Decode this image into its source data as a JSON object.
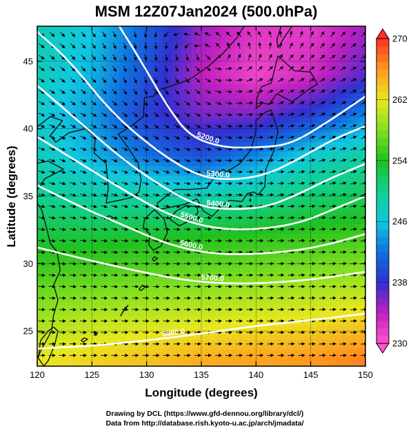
{
  "chart_data": {
    "type": "heatmap",
    "title": "MSM 12Z07Jan2024 (500.0hPa)",
    "xlabel": "Longitude (degrees)",
    "ylabel": "Latitude  (degrees)",
    "xlim": [
      120,
      150
    ],
    "ylim": [
      22.4,
      47.6
    ],
    "x_ticks": [
      "120",
      "125",
      "130",
      "135",
      "140",
      "145",
      "150"
    ],
    "y_ticks": [
      "25",
      "30",
      "35",
      "40",
      "45"
    ],
    "colorbar": {
      "range": [
        230,
        270
      ],
      "ticks": [
        "230",
        "238",
        "246",
        "254",
        "262",
        "270"
      ],
      "colors": {
        "230": "#ff55cc",
        "234": "#c020c0",
        "238": "#3030d0",
        "242": "#1070e0",
        "246": "#10c8e0",
        "250": "#10d090",
        "254": "#20c020",
        "258": "#80e020",
        "262": "#e8e820",
        "266": "#ff9a20",
        "270": "#ff3020"
      }
    },
    "temperature_field": {
      "lons": [
        120,
        125,
        130,
        135,
        140,
        145,
        150
      ],
      "lats": [
        23,
        26,
        29,
        32,
        35,
        38,
        41,
        44,
        47
      ],
      "values_K": [
        [
          262,
          263,
          264,
          265,
          265.5,
          266,
          267
        ],
        [
          259,
          260,
          260.5,
          261,
          261.5,
          262,
          263
        ],
        [
          256,
          256.5,
          257,
          257.5,
          258,
          258.5,
          259
        ],
        [
          253,
          253,
          253.5,
          254,
          254.5,
          255,
          255.5
        ],
        [
          250,
          249,
          249,
          248.5,
          249.5,
          251,
          252
        ],
        [
          248,
          245,
          242,
          240,
          243,
          247,
          249
        ],
        [
          247,
          244,
          239,
          236,
          236,
          239,
          243
        ],
        [
          248,
          245,
          240,
          234,
          231,
          233,
          237
        ],
        [
          248,
          246,
          241,
          235,
          232,
          232,
          235
        ]
      ]
    },
    "height_contours": {
      "levels_m": [
        5200,
        5300,
        5400,
        5500,
        5600,
        5700,
        5800
      ],
      "labels": [
        "5200.0",
        "5300.0",
        "5400.0",
        "5500.0",
        "5600.0",
        "5700.0",
        "5800.0"
      ],
      "lines": [
        {
          "level": "5200.0",
          "points": [
            [
              127.5,
              47.6
            ],
            [
              129.5,
              45
            ],
            [
              132,
              41.5
            ],
            [
              134,
              39.4
            ],
            [
              137,
              38.6
            ],
            [
              140,
              38.6
            ],
            [
              143,
              38.8
            ],
            [
              146,
              40.2
            ],
            [
              150,
              42.4
            ]
          ]
        },
        {
          "level": "5300.0",
          "points": [
            [
              120,
              47.2
            ],
            [
              123,
              45
            ],
            [
              127,
              41
            ],
            [
              131.5,
              38
            ],
            [
              135,
              36.4
            ],
            [
              138,
              36.2
            ],
            [
              141,
              36.6
            ],
            [
              144,
              37.8
            ],
            [
              147,
              39.2
            ],
            [
              150,
              40.2
            ]
          ]
        },
        {
          "level": "5400.0",
          "points": [
            [
              120,
              43.2
            ],
            [
              124,
              40.4
            ],
            [
              128,
              37.6
            ],
            [
              132,
              35.4
            ],
            [
              135,
              34.2
            ],
            [
              138,
              34
            ],
            [
              141,
              34.2
            ],
            [
              144,
              35.2
            ],
            [
              147,
              36.4
            ],
            [
              150,
              37.4
            ]
          ]
        },
        {
          "level": "5500.0",
          "points": [
            [
              120,
              39.4
            ],
            [
              124,
              37.4
            ],
            [
              128,
              35.4
            ],
            [
              132,
              33.6
            ],
            [
              136,
              32.6
            ],
            [
              140,
              32.5
            ],
            [
              144,
              33
            ],
            [
              147,
              34
            ],
            [
              150,
              35
            ]
          ]
        },
        {
          "level": "5600.0",
          "points": [
            [
              120,
              35.8
            ],
            [
              124,
              34.2
            ],
            [
              128,
              32.8
            ],
            [
              132,
              31.4
            ],
            [
              136,
              30.7
            ],
            [
              140,
              30.7
            ],
            [
              144,
              31
            ],
            [
              147,
              31.5
            ],
            [
              150,
              32.2
            ]
          ]
        },
        {
          "level": "5700.0",
          "points": [
            [
              120,
              31.2
            ],
            [
              125,
              30.2
            ],
            [
              130,
              29.3
            ],
            [
              134,
              28.7
            ],
            [
              138,
              28.5
            ],
            [
              142,
              28.6
            ],
            [
              146,
              28.9
            ],
            [
              150,
              29.4
            ]
          ]
        },
        {
          "level": "5800.0",
          "points": [
            [
              120,
              23.7
            ],
            [
              125,
              23.9
            ],
            [
              130,
              24.3
            ],
            [
              135,
              24.8
            ],
            [
              140,
              25.4
            ],
            [
              145,
              25.8
            ],
            [
              150,
              26.3
            ]
          ]
        }
      ]
    },
    "wind_field": {
      "lons": [
        120,
        125,
        130,
        135,
        140,
        145,
        150
      ],
      "lats": [
        23,
        26,
        29,
        32,
        35,
        38,
        41,
        44,
        47
      ],
      "u": [
        [
          6,
          6,
          6,
          6,
          6,
          6,
          6
        ],
        [
          6,
          6,
          6,
          6,
          6,
          6,
          6
        ],
        [
          6,
          6,
          6,
          6,
          6,
          6,
          6
        ],
        [
          6,
          6,
          6,
          6,
          6,
          6,
          6
        ],
        [
          6,
          6,
          6,
          6,
          6,
          6,
          6
        ],
        [
          6,
          6,
          6,
          6,
          6,
          6,
          6
        ],
        [
          5,
          5,
          4,
          5,
          6,
          6,
          6
        ],
        [
          4,
          3,
          1,
          2,
          3,
          5,
          6
        ],
        [
          4,
          2,
          0,
          -2,
          -2,
          2,
          4
        ]
      ],
      "v": [
        [
          0.2,
          0.1,
          0.1,
          0.2,
          0.3,
          0.4,
          0.4
        ],
        [
          -0.2,
          -0.2,
          -0.1,
          0,
          0.2,
          0.3,
          0.4
        ],
        [
          -0.5,
          -0.5,
          -0.3,
          -0.1,
          0.1,
          0.3,
          0.5
        ],
        [
          -0.9,
          -1,
          -0.7,
          -0.3,
          0.1,
          0.5,
          0.8
        ],
        [
          -1.5,
          -1.6,
          -1.3,
          -0.6,
          0.2,
          0.9,
          1.2
        ],
        [
          -2,
          -2.5,
          -2.8,
          -1.6,
          0.4,
          1.6,
          1.8
        ],
        [
          -2.5,
          -3,
          -4,
          -3,
          0.5,
          2.5,
          2.5
        ],
        [
          -3,
          -3.5,
          -4,
          -2,
          2,
          3.5,
          3
        ],
        [
          -3,
          -3,
          -2,
          1,
          3,
          4,
          3
        ]
      ]
    }
  },
  "credits": {
    "line1": "Drawing by DCL (https://www.gfd-dennou.org/library/dcl/)",
    "line2": "Data from http://database.rish.kyoto-u.ac.jp/arch/jmadata/"
  }
}
